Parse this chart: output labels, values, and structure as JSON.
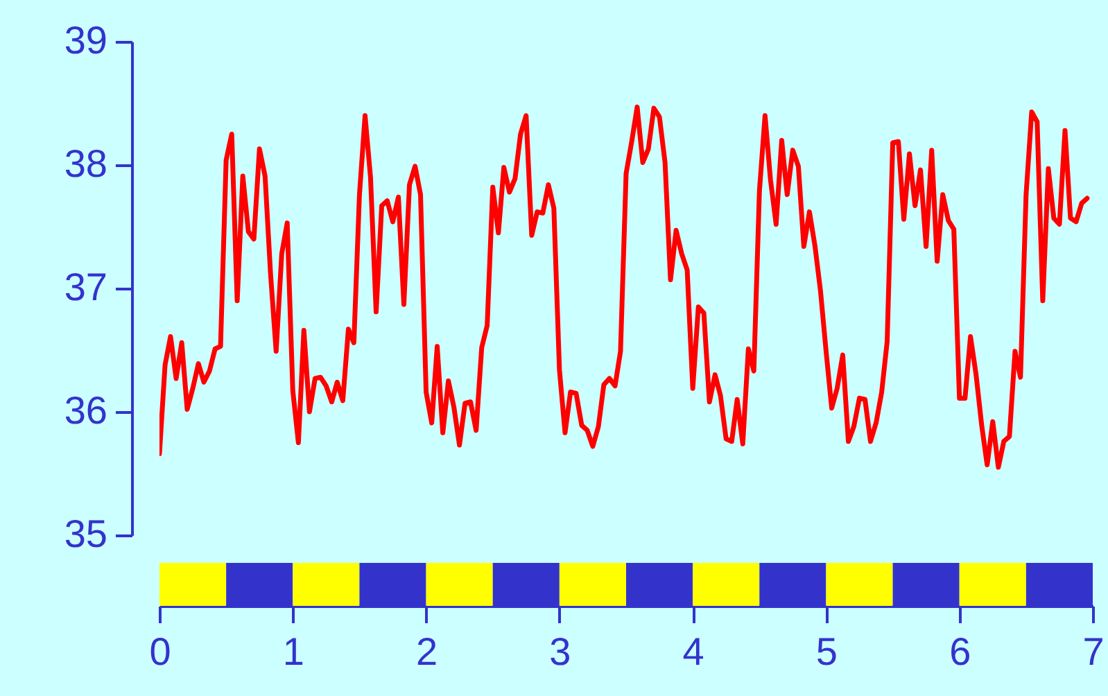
{
  "chart_data": {
    "type": "line",
    "x": [
      0,
      0.042,
      0.083,
      0.125,
      0.167,
      0.208,
      0.25,
      0.292,
      0.333,
      0.375,
      0.417,
      0.458,
      0.5,
      0.542,
      0.583,
      0.625,
      0.667,
      0.708,
      0.75,
      0.792,
      0.833,
      0.875,
      0.917,
      0.958,
      1,
      1.042,
      1.083,
      1.125,
      1.167,
      1.208,
      1.25,
      1.292,
      1.333,
      1.375,
      1.417,
      1.458,
      1.5,
      1.542,
      1.583,
      1.625,
      1.667,
      1.708,
      1.75,
      1.792,
      1.833,
      1.875,
      1.917,
      1.958,
      2,
      2.042,
      2.083,
      2.125,
      2.167,
      2.208,
      2.25,
      2.292,
      2.333,
      2.375,
      2.417,
      2.458,
      2.5,
      2.542,
      2.583,
      2.625,
      2.667,
      2.708,
      2.75,
      2.792,
      2.833,
      2.875,
      2.917,
      2.958,
      3,
      3.042,
      3.083,
      3.125,
      3.167,
      3.208,
      3.25,
      3.292,
      3.333,
      3.375,
      3.417,
      3.458,
      3.5,
      3.542,
      3.583,
      3.625,
      3.667,
      3.708,
      3.75,
      3.792,
      3.833,
      3.875,
      3.917,
      3.958,
      4,
      4.042,
      4.083,
      4.125,
      4.167,
      4.208,
      4.25,
      4.292,
      4.333,
      4.375,
      4.417,
      4.458,
      4.5,
      4.542,
      4.583,
      4.625,
      4.667,
      4.708,
      4.75,
      4.792,
      4.833,
      4.875,
      4.917,
      4.958,
      5,
      5.042,
      5.083,
      5.125,
      5.167,
      5.208,
      5.25,
      5.292,
      5.333,
      5.375,
      5.417,
      5.458,
      5.5,
      5.542,
      5.583,
      5.625,
      5.667,
      5.708,
      5.75,
      5.792,
      5.833,
      5.875,
      5.917,
      5.958,
      6,
      6.042,
      6.083,
      6.125,
      6.167,
      6.208,
      6.25,
      6.292,
      6.333,
      6.375,
      6.417,
      6.458,
      6.5,
      6.542,
      6.583,
      6.625,
      6.667,
      6.708,
      6.75,
      6.792,
      6.833,
      6.875,
      6.917,
      6.958
    ],
    "series": [
      {
        "color": "#ff0000",
        "values": [
          35.66,
          36.38,
          36.61,
          36.27,
          36.56,
          36.02,
          36.19,
          36.39,
          36.24,
          36.33,
          36.51,
          36.53,
          38.04,
          38.25,
          36.9,
          37.91,
          37.46,
          37.4,
          38.13,
          37.91,
          37.12,
          36.49,
          37.28,
          37.53,
          36.17,
          35.75,
          36.66,
          36.0,
          36.27,
          36.28,
          36.21,
          36.08,
          36.24,
          36.09,
          36.67,
          36.56,
          37.76,
          38.4,
          37.9,
          36.81,
          37.67,
          37.71,
          37.54,
          37.74,
          36.87,
          37.84,
          37.99,
          37.76,
          36.16,
          35.91,
          36.53,
          35.83,
          36.25,
          36.04,
          35.73,
          36.07,
          36.08,
          35.85,
          36.52,
          36.7,
          37.82,
          37.45,
          37.98,
          37.78,
          37.89,
          38.25,
          38.4,
          37.43,
          37.62,
          37.61,
          37.84,
          37.65,
          36.34,
          35.83,
          36.16,
          36.15,
          35.89,
          35.85,
          35.72,
          35.88,
          36.22,
          36.27,
          36.21,
          36.49,
          37.93,
          38.19,
          38.47,
          38.02,
          38.13,
          38.46,
          38.39,
          38.02,
          37.07,
          37.47,
          37.28,
          37.15,
          36.19,
          36.85,
          36.8,
          36.08,
          36.3,
          36.13,
          35.78,
          35.76,
          36.1,
          35.74,
          36.51,
          36.33,
          37.79,
          38.4,
          37.88,
          37.52,
          38.2,
          37.76,
          38.12,
          37.99,
          37.34,
          37.62,
          37.34,
          36.98,
          36.49,
          36.03,
          36.19,
          36.46,
          35.76,
          35.88,
          36.11,
          36.1,
          35.76,
          35.91,
          36.16,
          36.57,
          38.18,
          38.19,
          37.56,
          38.09,
          37.67,
          37.96,
          37.34,
          38.12,
          37.22,
          37.76,
          37.55,
          37.48,
          36.11,
          36.11,
          36.61,
          36.3,
          35.89,
          35.57,
          35.92,
          35.55,
          35.76,
          35.8,
          36.49,
          36.28,
          37.76,
          38.43,
          38.35,
          36.9,
          37.97,
          37.57,
          37.52,
          38.28,
          37.57,
          37.54,
          37.69,
          37.73
        ]
      }
    ],
    "xlim": [
      0,
      7
    ],
    "xticks": [
      0,
      1,
      2,
      3,
      4,
      5,
      6,
      7
    ],
    "ylim": [
      35,
      39
    ],
    "yticks": [
      35,
      36,
      37,
      38,
      39
    ]
  }
}
